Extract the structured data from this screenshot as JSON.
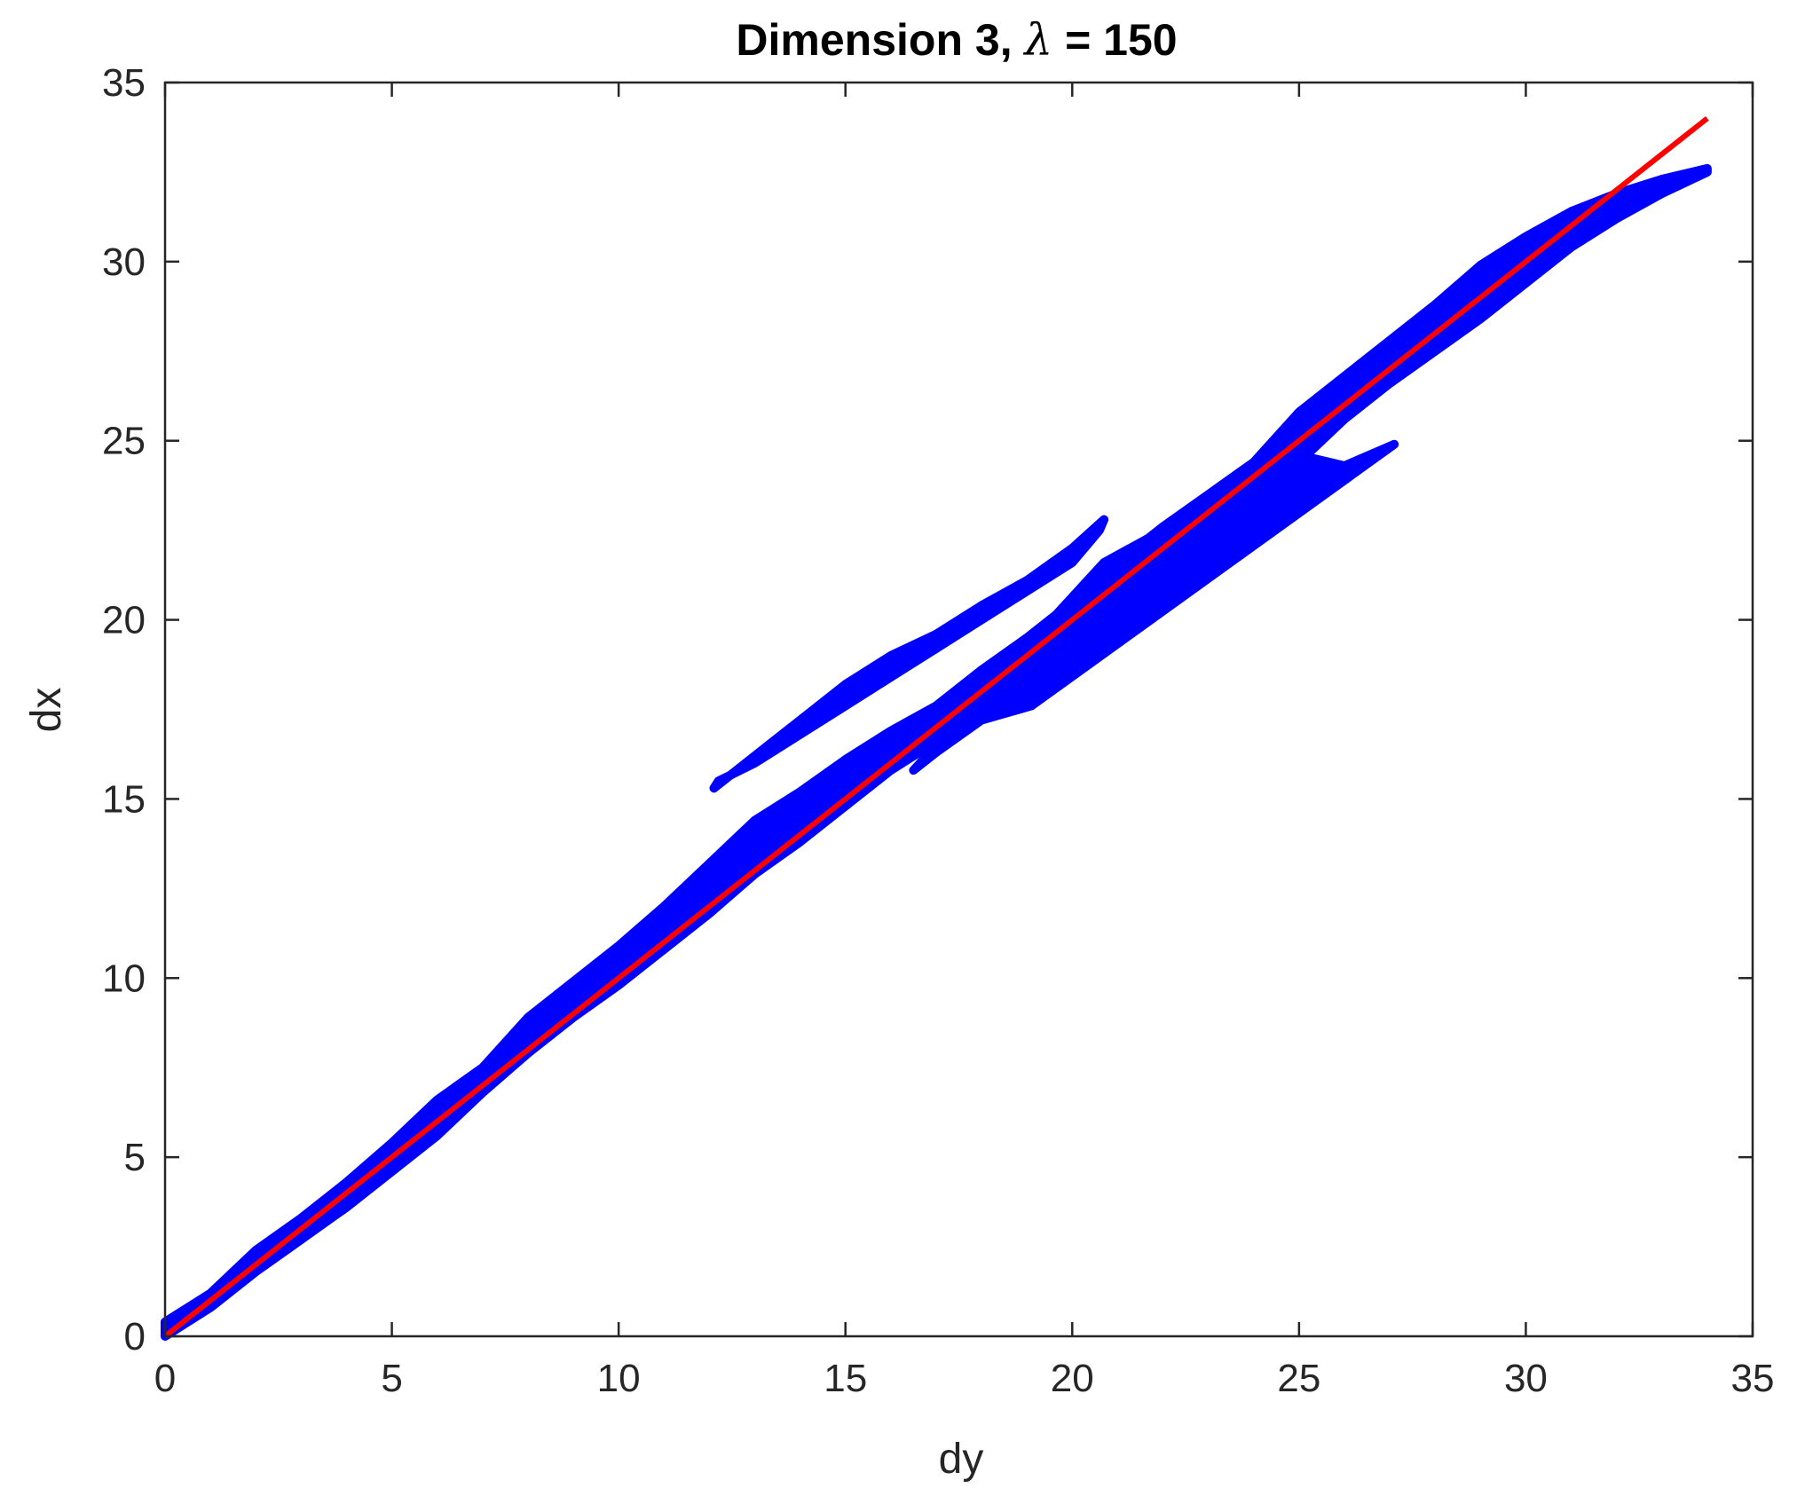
{
  "chart_data": {
    "type": "scatter",
    "title": {
      "prefix": "Dimension 3, ",
      "symbol": "λ",
      "suffix": " = 150"
    },
    "xlabel": "dy",
    "ylabel": "dx",
    "xlim": [
      0,
      35
    ],
    "ylim": [
      0,
      35
    ],
    "xticks": [
      0,
      5,
      10,
      15,
      20,
      25,
      30,
      35
    ],
    "yticks": [
      0,
      5,
      10,
      15,
      20,
      25,
      30,
      35
    ],
    "grid": false,
    "colors": {
      "scatter": "#0000ff",
      "fit_line": "#ff0000",
      "axes": "#262626"
    },
    "series": [
      {
        "kind": "scatter-bands",
        "description_points": [
          [
            [
              0,
              0
            ],
            [
              1,
              0.8
            ],
            [
              2,
              1.8
            ],
            [
              3,
              2.7
            ],
            [
              4,
              3.6
            ],
            [
              5,
              4.6
            ],
            [
              6,
              5.6
            ],
            [
              7,
              6.8
            ],
            [
              8,
              7.9
            ],
            [
              9,
              8.9
            ],
            [
              10,
              9.8
            ],
            [
              11,
              10.8
            ],
            [
              12,
              11.8
            ],
            [
              13,
              12.9
            ],
            [
              14,
              13.8
            ],
            [
              15,
              14.8
            ],
            [
              16,
              15.8
            ],
            [
              17,
              16.6
            ],
            [
              18,
              17.6
            ],
            [
              19,
              18.5
            ],
            [
              20,
              19.6
            ],
            [
              21,
              20.6
            ],
            [
              22,
              21.5
            ],
            [
              23,
              22.5
            ],
            [
              24,
              23.4
            ],
            [
              25,
              24.4
            ],
            [
              26,
              25.6
            ],
            [
              27,
              26.6
            ],
            [
              28,
              27.5
            ],
            [
              29,
              28.4
            ],
            [
              30,
              29.4
            ],
            [
              31,
              30.4
            ],
            [
              32,
              31.2
            ],
            [
              33,
              31.9
            ],
            [
              34,
              32.5
            ]
          ],
          [
            [
              0,
              0.4
            ],
            [
              1,
              1.2
            ],
            [
              2,
              2.4
            ],
            [
              3,
              3.3
            ],
            [
              4,
              4.3
            ],
            [
              5,
              5.4
            ],
            [
              6,
              6.6
            ],
            [
              7,
              7.5
            ],
            [
              8,
              8.9
            ],
            [
              9,
              9.9
            ],
            [
              10,
              10.9
            ],
            [
              11,
              12.0
            ],
            [
              12,
              13.2
            ],
            [
              13,
              14.4
            ],
            [
              14,
              15.2
            ],
            [
              15,
              16.1
            ],
            [
              16,
              16.9
            ],
            [
              17,
              17.6
            ],
            [
              18,
              18.6
            ],
            [
              19,
              19.5
            ],
            [
              20,
              20.5
            ],
            [
              21,
              21.6
            ],
            [
              22,
              22.6
            ],
            [
              23,
              23.5
            ],
            [
              24,
              24.4
            ],
            [
              25,
              25.8
            ],
            [
              26,
              26.8
            ],
            [
              27,
              27.8
            ],
            [
              28,
              28.8
            ],
            [
              29,
              29.9
            ],
            [
              30,
              30.7
            ],
            [
              31,
              31.4
            ],
            [
              32,
              31.9
            ],
            [
              33,
              32.3
            ],
            [
              34,
              32.6
            ]
          ],
          [
            [
              12.1,
              15.3
            ],
            [
              13,
              16.2
            ],
            [
              14,
              17.2
            ],
            [
              15,
              18.2
            ],
            [
              16,
              19.0
            ],
            [
              17,
              19.6
            ],
            [
              18,
              20.4
            ],
            [
              19,
              21.1
            ],
            [
              20,
              22.0
            ],
            [
              20.7,
              22.8
            ]
          ],
          [
            [
              12.2,
              15.5
            ],
            [
              13,
              16.0
            ],
            [
              14,
              16.8
            ],
            [
              15,
              17.6
            ],
            [
              16,
              18.4
            ],
            [
              17,
              19.2
            ],
            [
              18,
              20.0
            ],
            [
              19,
              20.8
            ],
            [
              20,
              21.6
            ],
            [
              20.6,
              22.5
            ]
          ],
          [
            [
              16.5,
              15.8
            ],
            [
              17,
              16.3
            ],
            [
              18,
              17.2
            ],
            [
              19.1,
              17.6
            ]
          ],
          [
            [
              20.7,
              21.6
            ],
            [
              22,
              22.5
            ],
            [
              24,
              23.9
            ],
            [
              25,
              24.6
            ],
            [
              26,
              24.3
            ],
            [
              27.1,
              24.9
            ]
          ]
        ]
      },
      {
        "kind": "line",
        "x": [
          0,
          34
        ],
        "y": [
          0,
          34
        ]
      }
    ]
  }
}
